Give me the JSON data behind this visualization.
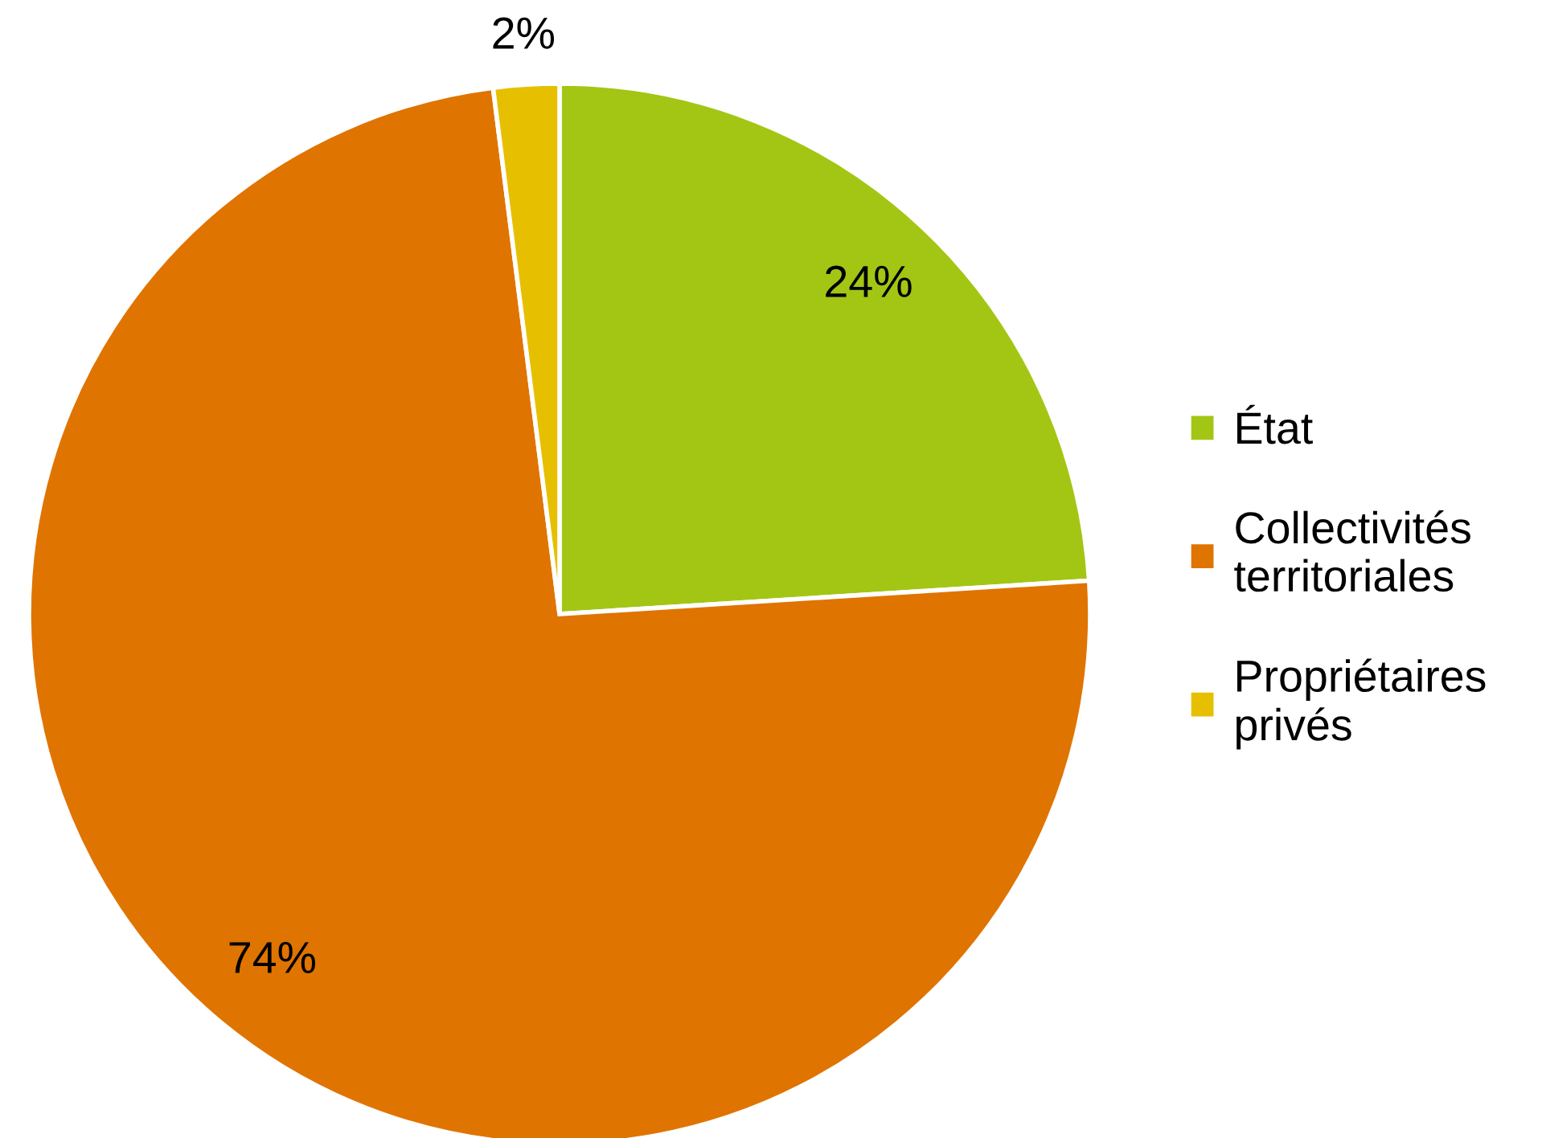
{
  "chart_data": {
    "type": "pie",
    "categories": [
      "État",
      "Collectivités\nterritoriales",
      "Propriétaires\nprivés"
    ],
    "values": [
      24,
      74,
      2
    ],
    "colors": [
      "#a3c614",
      "#e07400",
      "#e6c000"
    ],
    "value_labels": [
      "24%",
      "74%",
      "2%"
    ],
    "legend": "right"
  }
}
